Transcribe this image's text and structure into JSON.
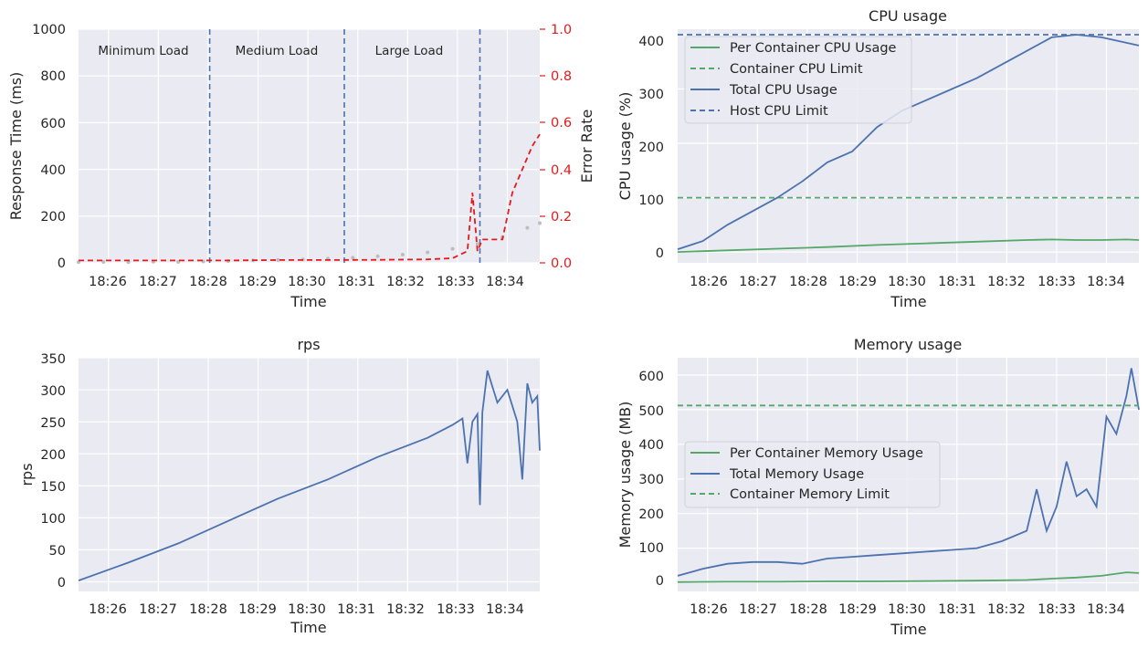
{
  "colors": {
    "background": "#eaeaf2",
    "grid": "#ffffff",
    "blue": "#4c72b0",
    "green": "#55a868",
    "red": "#e41a1c",
    "gray": "#bdbdbd"
  },
  "chart_data": [
    {
      "id": "response",
      "type": "scatter",
      "title": "",
      "xlabel": "Time",
      "ylabel": "Response Time (ms)",
      "y2label": "Error Rate",
      "xlim": [
        0,
        9.25
      ],
      "ylim": [
        0,
        1000
      ],
      "y2lim": [
        0,
        1.0
      ],
      "x_ticks": [
        "18:26",
        "18:27",
        "18:28",
        "18:29",
        "18:30",
        "18:31",
        "18:32",
        "18:33",
        "18:34"
      ],
      "y_ticks": [
        0,
        200,
        400,
        600,
        800,
        1000
      ],
      "y2_ticks": [
        "0.0",
        "0.2",
        "0.4",
        "0.6",
        "0.8",
        "1.0"
      ],
      "phases": [
        {
          "label": "Minimum Load",
          "x": 1.3
        },
        {
          "label": "Medium Load",
          "x": 4.0
        },
        {
          "label": "Large Load",
          "x": 6.6
        }
      ],
      "phase_boundaries": [
        2.63,
        5.33,
        8.05
      ],
      "series": [
        {
          "values": [
            [
              0,
              3
            ],
            [
              0.5,
              4
            ],
            [
              1,
              3
            ],
            [
              1.5,
              5
            ],
            [
              2,
              4
            ],
            [
              2.5,
              6
            ],
            [
              3,
              8
            ],
            [
              3.5,
              10
            ],
            [
              4,
              12
            ],
            [
              4.5,
              15
            ],
            [
              5,
              18
            ],
            [
              5.5,
              22
            ],
            [
              6,
              28
            ],
            [
              6.5,
              35
            ],
            [
              7,
              45
            ],
            [
              7.5,
              60
            ],
            [
              8,
              80
            ],
            [
              8.5,
              110
            ],
            [
              9,
              150
            ],
            [
              9.25,
              170
            ]
          ]
        },
        {
          "values": [
            [
              0,
              0.01
            ],
            [
              1,
              0.01
            ],
            [
              2,
              0.01
            ],
            [
              3,
              0.01
            ],
            [
              4,
              0.012
            ],
            [
              5,
              0.012
            ],
            [
              6,
              0.013
            ],
            [
              7,
              0.015
            ],
            [
              7.5,
              0.02
            ],
            [
              7.8,
              0.05
            ],
            [
              7.9,
              0.3
            ],
            [
              8.0,
              0.05
            ],
            [
              8.1,
              0.1
            ],
            [
              8.5,
              0.1
            ],
            [
              8.7,
              0.3
            ],
            [
              8.9,
              0.4
            ],
            [
              9.1,
              0.5
            ],
            [
              9.25,
              0.55
            ]
          ]
        }
      ]
    },
    {
      "id": "cpu",
      "type": "line",
      "title": "CPU usage",
      "xlabel": "Time",
      "ylabel": "CPU usage (%)",
      "xlim": [
        0,
        9.25
      ],
      "ylim": [
        -20,
        410
      ],
      "x_ticks": [
        "18:26",
        "18:27",
        "18:28",
        "18:29",
        "18:30",
        "18:31",
        "18:32",
        "18:33",
        "18:34"
      ],
      "y_ticks": [
        0,
        100,
        200,
        300,
        400
      ],
      "legend": [
        "Per Container CPU Usage",
        "Container CPU Limit",
        "Total CPU Usage",
        "Host CPU Limit"
      ],
      "series": [
        {
          "name": "Per Container CPU Usage",
          "values": [
            [
              0,
              0
            ],
            [
              1,
              3
            ],
            [
              2,
              6
            ],
            [
              3,
              9
            ],
            [
              4,
              13
            ],
            [
              5,
              16
            ],
            [
              6,
              19
            ],
            [
              7,
              22
            ],
            [
              7.5,
              23
            ],
            [
              8,
              22
            ],
            [
              8.5,
              22
            ],
            [
              9,
              23
            ],
            [
              9.25,
              22
            ]
          ]
        },
        {
          "name": "Container CPU Limit",
          "values": [
            [
              0,
              100
            ],
            [
              9.25,
              100
            ]
          ]
        },
        {
          "name": "Total CPU Usage",
          "values": [
            [
              0,
              5
            ],
            [
              0.5,
              20
            ],
            [
              1,
              50
            ],
            [
              1.5,
              75
            ],
            [
              2,
              100
            ],
            [
              2.5,
              130
            ],
            [
              3,
              165
            ],
            [
              3.5,
              185
            ],
            [
              4,
              230
            ],
            [
              4.5,
              260
            ],
            [
              5,
              280
            ],
            [
              5.5,
              300
            ],
            [
              6,
              320
            ],
            [
              6.5,
              345
            ],
            [
              7,
              370
            ],
            [
              7.5,
              395
            ],
            [
              8,
              400
            ],
            [
              8.5,
              395
            ],
            [
              9,
              385
            ],
            [
              9.25,
              380
            ]
          ]
        },
        {
          "name": "Host CPU Limit",
          "values": [
            [
              0,
              400
            ],
            [
              9.25,
              400
            ]
          ]
        }
      ]
    },
    {
      "id": "rps",
      "type": "line",
      "title": "rps",
      "xlabel": "Time",
      "ylabel": "rps",
      "xlim": [
        0,
        9.25
      ],
      "ylim": [
        -15,
        350
      ],
      "x_ticks": [
        "18:26",
        "18:27",
        "18:28",
        "18:29",
        "18:30",
        "18:31",
        "18:32",
        "18:33",
        "18:34"
      ],
      "y_ticks": [
        0,
        50,
        100,
        150,
        200,
        250,
        300,
        350
      ],
      "series": [
        {
          "values": [
            [
              0,
              2
            ],
            [
              1,
              30
            ],
            [
              2,
              60
            ],
            [
              3,
              95
            ],
            [
              4,
              130
            ],
            [
              5,
              160
            ],
            [
              6,
              195
            ],
            [
              7,
              225
            ],
            [
              7.5,
              245
            ],
            [
              7.7,
              255
            ],
            [
              7.8,
              185
            ],
            [
              7.9,
              250
            ],
            [
              8.0,
              262
            ],
            [
              8.05,
              120
            ],
            [
              8.1,
              265
            ],
            [
              8.2,
              330
            ],
            [
              8.4,
              280
            ],
            [
              8.6,
              300
            ],
            [
              8.8,
              250
            ],
            [
              8.9,
              160
            ],
            [
              9.0,
              310
            ],
            [
              9.1,
              280
            ],
            [
              9.2,
              290
            ],
            [
              9.25,
              205
            ]
          ]
        }
      ]
    },
    {
      "id": "memory",
      "type": "line",
      "title": "Memory usage",
      "xlabel": "Time",
      "ylabel": "Memory usage (MB)",
      "xlim": [
        0,
        9.25
      ],
      "ylim": [
        -25,
        650
      ],
      "x_ticks": [
        "18:26",
        "18:27",
        "18:28",
        "18:29",
        "18:30",
        "18:31",
        "18:32",
        "18:33",
        "18:34"
      ],
      "y_ticks": [
        0,
        100,
        200,
        300,
        400,
        500,
        600
      ],
      "legend": [
        "Per Container Memory Usage",
        "Total Memory Usage",
        "Container Memory Limit"
      ],
      "series": [
        {
          "name": "Per Container Memory Usage",
          "values": [
            [
              0,
              2
            ],
            [
              1,
              3
            ],
            [
              2,
              3
            ],
            [
              3,
              4
            ],
            [
              4,
              4
            ],
            [
              5,
              5
            ],
            [
              6,
              6
            ],
            [
              7,
              8
            ],
            [
              7.5,
              12
            ],
            [
              8,
              15
            ],
            [
              8.5,
              20
            ],
            [
              9,
              30
            ],
            [
              9.25,
              28
            ]
          ]
        },
        {
          "name": "Total Memory Usage",
          "values": [
            [
              0,
              20
            ],
            [
              0.5,
              40
            ],
            [
              1,
              55
            ],
            [
              1.5,
              60
            ],
            [
              2,
              60
            ],
            [
              2.5,
              55
            ],
            [
              3,
              70
            ],
            [
              3.5,
              75
            ],
            [
              4,
              80
            ],
            [
              4.5,
              85
            ],
            [
              5,
              90
            ],
            [
              5.5,
              95
            ],
            [
              6,
              100
            ],
            [
              6.5,
              120
            ],
            [
              7,
              150
            ],
            [
              7.2,
              270
            ],
            [
              7.4,
              150
            ],
            [
              7.6,
              220
            ],
            [
              7.8,
              350
            ],
            [
              8.0,
              250
            ],
            [
              8.2,
              270
            ],
            [
              8.4,
              220
            ],
            [
              8.6,
              480
            ],
            [
              8.8,
              430
            ],
            [
              9.0,
              540
            ],
            [
              9.1,
              620
            ],
            [
              9.2,
              540
            ],
            [
              9.25,
              500
            ]
          ]
        },
        {
          "name": "Container Memory Limit",
          "values": [
            [
              0,
              512
            ],
            [
              9.25,
              512
            ]
          ]
        }
      ]
    }
  ]
}
